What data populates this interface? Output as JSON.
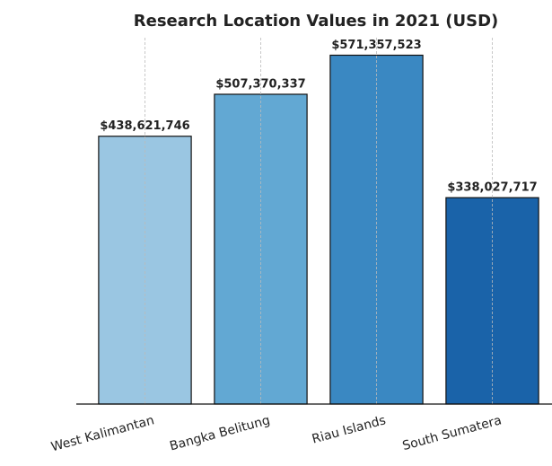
{
  "chart_data": {
    "type": "bar",
    "title": "Research Location Values in 2021 (USD)",
    "categories": [
      "West Kalimantan",
      "Bangka Belitung",
      "Riau Islands",
      "South Sumatera"
    ],
    "values": [
      438621746,
      507370337,
      571357523,
      338027717
    ],
    "value_labels": [
      "$438,621,746",
      "$507,370,337",
      "$571,357,523",
      "$338,027,717"
    ],
    "colors": [
      "#9ac6e2",
      "#62a8d3",
      "#3a88c2",
      "#1a63a9"
    ],
    "ylim": [
      0,
      600000000
    ],
    "grid": "x"
  }
}
